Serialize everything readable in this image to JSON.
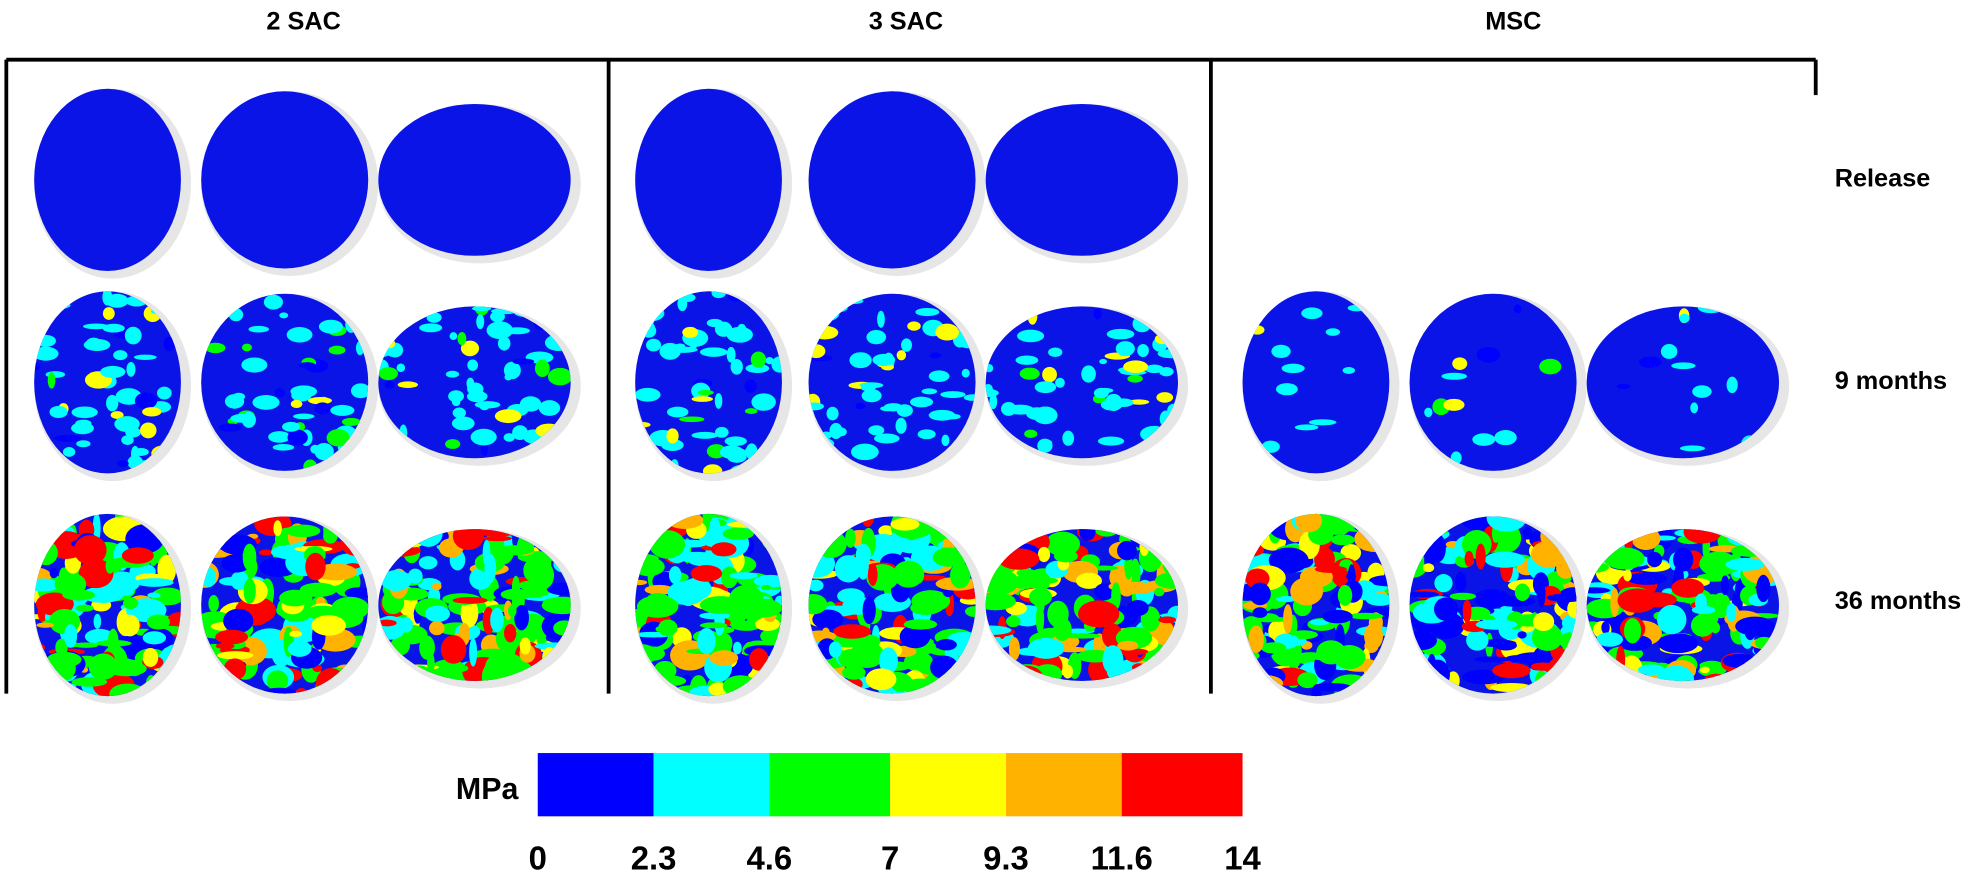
{
  "columns": [
    "2 SAC",
    "3 SAC",
    "MSC"
  ],
  "rows": [
    "Release",
    "9 months",
    "36 months"
  ],
  "colorbar": {
    "unit": "MPa",
    "range": [
      0,
      14
    ],
    "ticks": [
      0,
      2.3,
      4.6,
      7,
      9.3,
      11.6,
      14
    ],
    "colors": [
      "#0000ff",
      "#00ffff",
      "#00ff00",
      "#ffff00",
      "#ffb300",
      "#ff0000"
    ]
  }
}
